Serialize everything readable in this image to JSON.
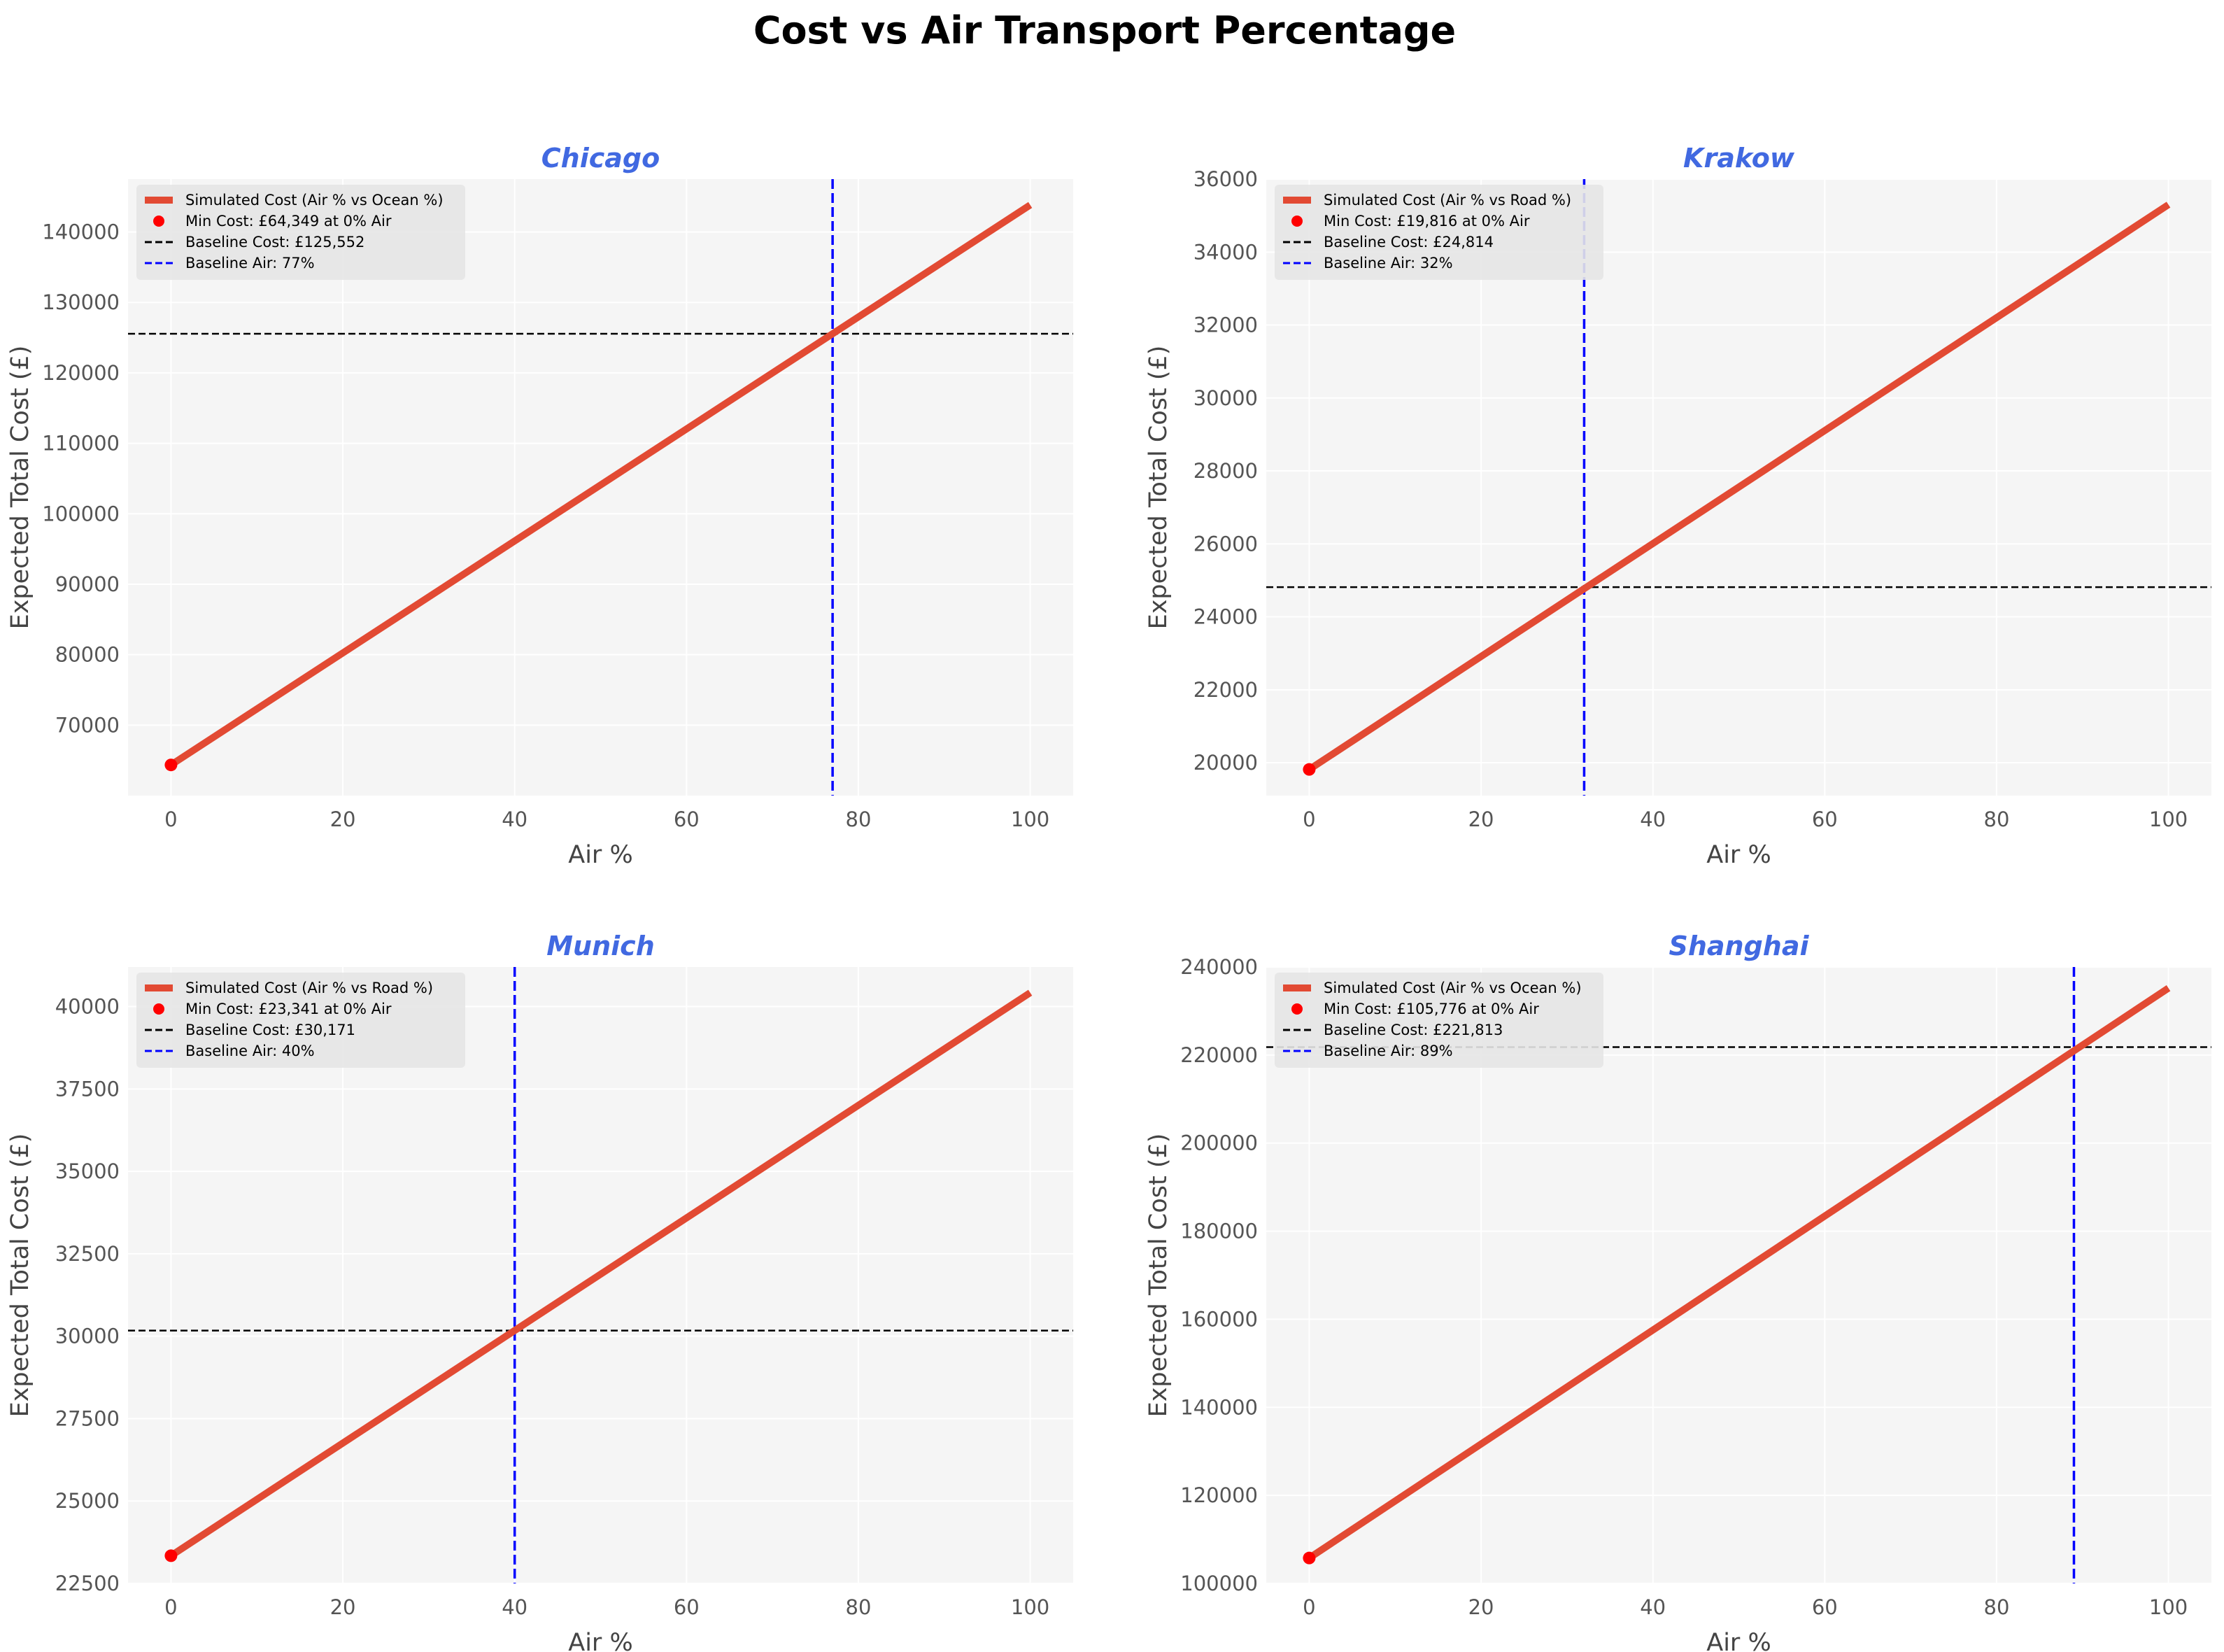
{
  "figure_title": "Cost vs Air Transport Percentage",
  "colors": {
    "simulated_line": "#e24a33",
    "min_point": "#ff0000",
    "baseline_cost": "#000000",
    "baseline_air": "#0000ff",
    "panel_title": "#4169e1",
    "plot_background": "#f5f5f5",
    "grid": "#ffffff"
  },
  "chart_data": [
    {
      "type": "line",
      "title": "Chicago",
      "xlabel": "Air %",
      "ylabel": "Expected Total Cost (£)",
      "xlim": [
        -5,
        105
      ],
      "ylim": [
        60000,
        147500
      ],
      "xticks": [
        0,
        20,
        40,
        60,
        80,
        100
      ],
      "yticks": [
        70000,
        80000,
        90000,
        100000,
        110000,
        120000,
        130000,
        140000
      ],
      "grid": true,
      "legend_position": "upper-left",
      "series": [
        {
          "name": "Simulated Cost (Air % vs Ocean %)",
          "x": [
            0,
            100
          ],
          "y": [
            64349,
            143830
          ]
        }
      ],
      "min_point": {
        "name": "Min Cost: £64,349 at 0% Air",
        "x": 0,
        "y": 64349
      },
      "baseline_cost": {
        "name": "Baseline Cost: £125,552",
        "y": 125552
      },
      "baseline_air": {
        "name": "Baseline Air: 77%",
        "x": 77
      }
    },
    {
      "type": "line",
      "title": "Krakow",
      "xlabel": "Air %",
      "ylabel": "Expected Total Cost (£)",
      "xlim": [
        -5,
        105
      ],
      "ylim": [
        19100,
        36000
      ],
      "xticks": [
        0,
        20,
        40,
        60,
        80,
        100
      ],
      "yticks": [
        20000,
        22000,
        24000,
        26000,
        28000,
        30000,
        32000,
        34000,
        36000
      ],
      "grid": true,
      "legend_position": "upper-left",
      "series": [
        {
          "name": "Simulated Cost (Air % vs Road %)",
          "x": [
            0,
            100
          ],
          "y": [
            19816,
            35300
          ]
        }
      ],
      "min_point": {
        "name": "Min Cost: £19,816 at 0% Air",
        "x": 0,
        "y": 19816
      },
      "baseline_cost": {
        "name": "Baseline Cost: £24,814",
        "y": 24814
      },
      "baseline_air": {
        "name": "Baseline Air: 32%",
        "x": 32
      }
    },
    {
      "type": "line",
      "title": "Munich",
      "xlabel": "Air %",
      "ylabel": "Expected Total Cost (£)",
      "xlim": [
        -5,
        105
      ],
      "ylim": [
        22500,
        41200
      ],
      "xticks": [
        0,
        20,
        40,
        60,
        80,
        100
      ],
      "yticks": [
        22500,
        25000,
        27500,
        30000,
        32500,
        35000,
        37500,
        40000
      ],
      "grid": true,
      "legend_position": "upper-left",
      "series": [
        {
          "name": "Simulated Cost (Air % vs Road %)",
          "x": [
            0,
            100
          ],
          "y": [
            23341,
            40420
          ]
        }
      ],
      "min_point": {
        "name": "Min Cost: £23,341 at 0% Air",
        "x": 0,
        "y": 23341
      },
      "baseline_cost": {
        "name": "Baseline Cost: £30,171",
        "y": 30171
      },
      "baseline_air": {
        "name": "Baseline Air: 40%",
        "x": 40
      }
    },
    {
      "type": "line",
      "title": "Shanghai",
      "xlabel": "Air %",
      "ylabel": "Expected Total Cost (£)",
      "xlim": [
        -5,
        105
      ],
      "ylim": [
        100000,
        240000
      ],
      "xticks": [
        0,
        20,
        40,
        60,
        80,
        100
      ],
      "yticks": [
        100000,
        120000,
        140000,
        160000,
        180000,
        200000,
        220000,
        240000
      ],
      "grid": true,
      "legend_position": "upper-left",
      "series": [
        {
          "name": "Simulated Cost (Air % vs Ocean %)",
          "x": [
            0,
            100
          ],
          "y": [
            105776,
            235200
          ]
        }
      ],
      "min_point": {
        "name": "Min Cost: £105,776 at 0% Air",
        "x": 0,
        "y": 105776
      },
      "baseline_cost": {
        "name": "Baseline Cost: £221,813",
        "y": 221813
      },
      "baseline_air": {
        "name": "Baseline Air: 89%",
        "x": 89
      }
    }
  ]
}
